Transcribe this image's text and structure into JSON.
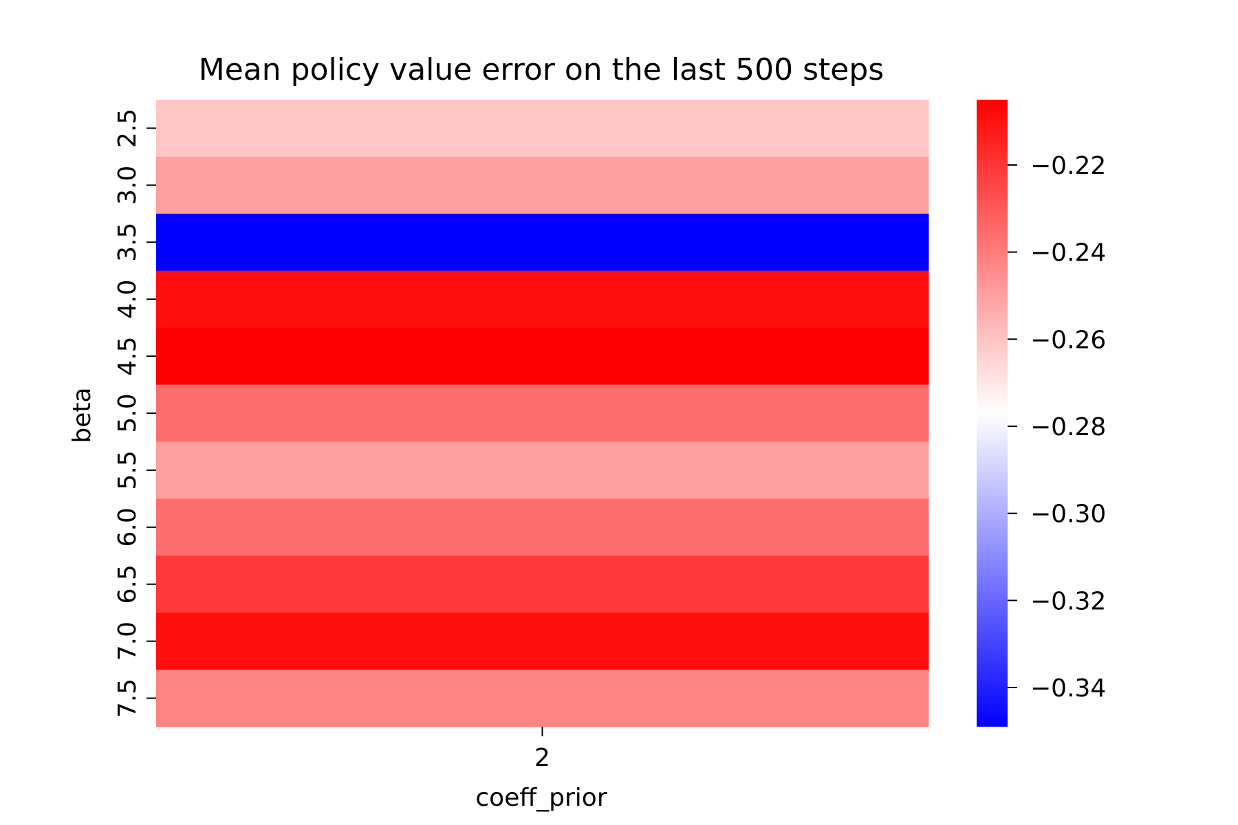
{
  "chart_data": {
    "type": "heatmap",
    "title": "Mean policy value error on the last 500 steps",
    "xlabel": "coeff_prior",
    "ylabel": "beta",
    "x_categories": [
      "2"
    ],
    "y_categories": [
      "2.5",
      "3.0",
      "3.5",
      "4.0",
      "4.5",
      "5.0",
      "5.5",
      "6.0",
      "6.5",
      "7.0",
      "7.5"
    ],
    "values": [
      [
        -0.261
      ],
      [
        -0.25
      ],
      [
        -0.349
      ],
      [
        -0.209
      ],
      [
        -0.205
      ],
      [
        -0.236
      ],
      [
        -0.25
      ],
      [
        -0.236
      ],
      [
        -0.221
      ],
      [
        -0.209
      ],
      [
        -0.242
      ]
    ],
    "colormap": "bwr",
    "colorbar": {
      "vmin": -0.349,
      "vmax": -0.205,
      "center": -0.277,
      "ticks": [
        -0.22,
        -0.24,
        -0.26,
        -0.28,
        -0.3,
        -0.32,
        -0.34
      ],
      "tick_labels": [
        "−0.22",
        "−0.24",
        "−0.26",
        "−0.28",
        "−0.30",
        "−0.32",
        "−0.34"
      ],
      "low_color": "#0000ff",
      "mid_color": "#ffffff",
      "high_color": "#ff0000"
    }
  }
}
